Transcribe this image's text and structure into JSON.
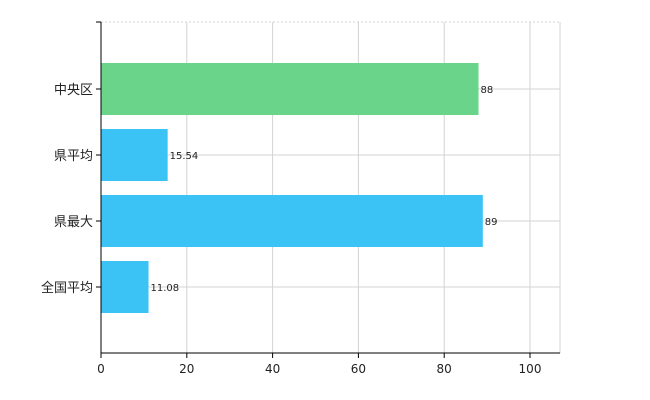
{
  "chart_data": {
    "type": "bar",
    "orientation": "horizontal",
    "categories": [
      "中央区",
      "県平均",
      "県最大",
      "全国平均"
    ],
    "values": [
      88,
      15.54,
      89,
      11.08
    ],
    "value_labels": [
      "88",
      "15.54",
      "89",
      "11.08"
    ],
    "bar_colors": [
      "#6ad48a",
      "#3cc3f5",
      "#3cc3f5",
      "#3cc3f5"
    ],
    "xlim": [
      0,
      107
    ],
    "x_ticks": [
      0,
      20,
      40,
      60,
      80,
      100
    ],
    "x_tick_labels": [
      "0",
      "20",
      "40",
      "60",
      "80",
      "100"
    ],
    "grid": true,
    "title": "",
    "xlabel": "",
    "ylabel": ""
  }
}
